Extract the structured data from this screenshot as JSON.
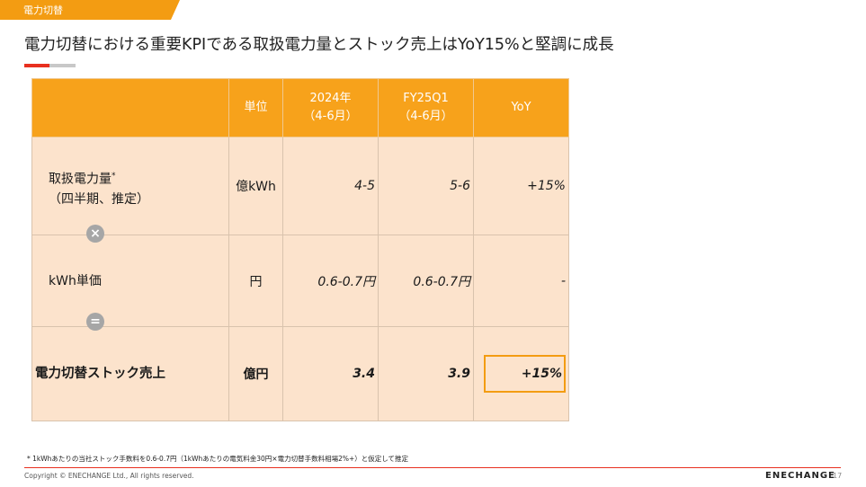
{
  "header": {
    "section_tab": "電力切替",
    "title": "電力切替における重要KPIである取扱電力量とストック売上はYoY15%と堅調に成長"
  },
  "table": {
    "headers": {
      "label": "",
      "unit": "単位",
      "period1_line1": "2024年",
      "period1_line2": "（4-6月）",
      "period2_line1": "FY25Q1",
      "period2_line2": "（4-6月）",
      "yoy": "YoY"
    },
    "rows": [
      {
        "label_line1": "取扱電力量",
        "label_mark": "*",
        "label_line2": "（四半期、推定）",
        "unit": "億kWh",
        "period1": "4-5",
        "period2": "5-6",
        "yoy": "+15%"
      },
      {
        "label_line1": "kWh単価",
        "unit": "円",
        "period1": "0.6-0.7円",
        "period2": "0.6-0.7円",
        "yoy": "-"
      },
      {
        "label_line1": "電力切替ストック売上",
        "unit": "億円",
        "period1": "3.4",
        "period2": "3.9",
        "yoy": "+15%"
      }
    ],
    "operators": {
      "multiply": "×",
      "equals": "="
    }
  },
  "footnote": "* 1kWhあたりの当社ストック手数料を0.6-0.7円（1kWhあたりの電気料金30円×電力切替手数料相場2%+）と仮定して推定",
  "footer": {
    "copyright": "Copyright © ENECHANGE Ltd., All rights reserved.",
    "logo": "ENECHANGE",
    "page_number": "17"
  },
  "colors": {
    "accent_orange": "#f39c12",
    "header_orange": "#f7a21b",
    "cell_peach": "#fce3cc",
    "accent_red": "#e8301f"
  }
}
